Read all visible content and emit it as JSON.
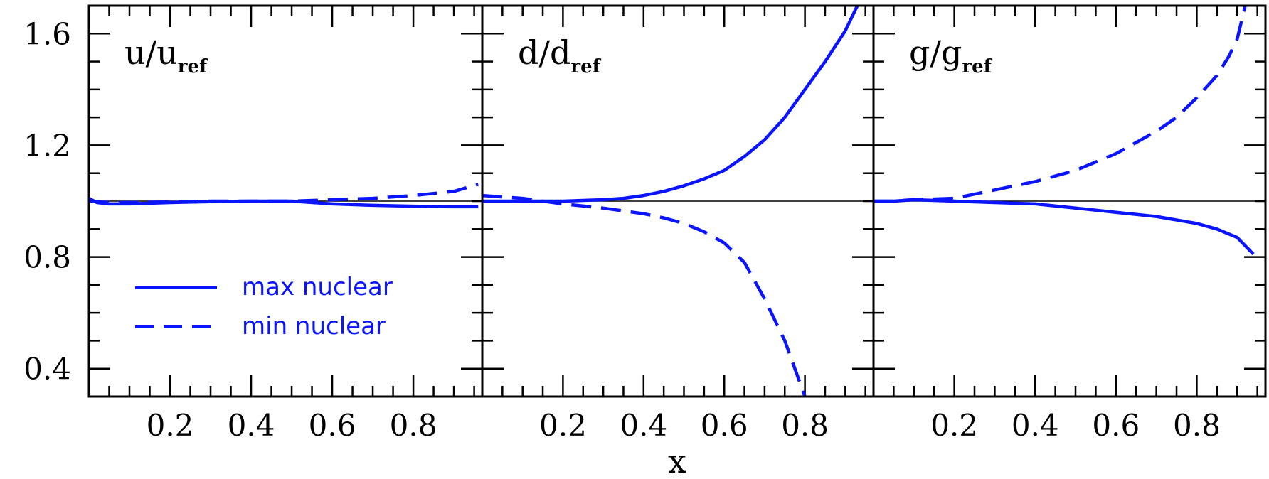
{
  "chart_data": {
    "type": "line",
    "xlabel": "x",
    "xlim": [
      0.0,
      0.97
    ],
    "ylim": [
      0.3,
      1.7
    ],
    "x_ticks": [
      "0.2",
      "0.4",
      "0.6",
      "0.8"
    ],
    "x_tick_values": [
      0.2,
      0.4,
      0.6,
      0.8
    ],
    "y_ticks": [
      "0.4",
      "0.8",
      "1.2",
      "1.6"
    ],
    "y_tick_values": [
      0.4,
      0.8,
      1.2,
      1.6
    ],
    "reference_line": 1.0,
    "colors": {
      "series": "#0a14ff",
      "axes": "#000000",
      "reference": "#000000"
    },
    "legend": {
      "placement": "lower-left of first panel",
      "entries": [
        {
          "label": "max nuclear",
          "style": "solid"
        },
        {
          "label": "min nuclear",
          "style": "dashed"
        }
      ]
    },
    "panels": [
      {
        "label_main": "u/u",
        "label_sub": "ref",
        "series": [
          {
            "name": "max nuclear",
            "style": "solid",
            "x": [
              0.0,
              0.02,
              0.05,
              0.1,
              0.2,
              0.3,
              0.4,
              0.5,
              0.6,
              0.7,
              0.8,
              0.9,
              0.96
            ],
            "y": [
              1.01,
              0.995,
              0.99,
              0.99,
              0.995,
              0.998,
              1.0,
              1.0,
              0.99,
              0.985,
              0.982,
              0.98,
              0.98
            ]
          },
          {
            "name": "min nuclear",
            "style": "dashed",
            "x": [
              0.0,
              0.05,
              0.1,
              0.2,
              0.3,
              0.4,
              0.5,
              0.6,
              0.7,
              0.8,
              0.9,
              0.96
            ],
            "y": [
              1.0,
              0.995,
              0.995,
              0.997,
              1.0,
              1.0,
              1.0,
              1.005,
              1.01,
              1.02,
              1.035,
              1.06
            ]
          }
        ]
      },
      {
        "label_main": "d/d",
        "label_sub": "ref",
        "series": [
          {
            "name": "max nuclear",
            "style": "solid",
            "x": [
              0.0,
              0.1,
              0.2,
              0.3,
              0.35,
              0.4,
              0.45,
              0.5,
              0.55,
              0.6,
              0.65,
              0.7,
              0.75,
              0.8,
              0.85,
              0.9,
              0.93
            ],
            "y": [
              1.0,
              1.0,
              1.0,
              1.005,
              1.01,
              1.02,
              1.035,
              1.055,
              1.08,
              1.11,
              1.16,
              1.22,
              1.3,
              1.4,
              1.5,
              1.61,
              1.7
            ]
          },
          {
            "name": "min nuclear",
            "style": "dashed",
            "x": [
              0.0,
              0.1,
              0.2,
              0.3,
              0.35,
              0.4,
              0.45,
              0.5,
              0.55,
              0.6,
              0.65,
              0.7,
              0.75,
              0.8
            ],
            "y": [
              1.02,
              1.01,
              0.99,
              0.975,
              0.965,
              0.955,
              0.94,
              0.92,
              0.89,
              0.85,
              0.78,
              0.65,
              0.5,
              0.3
            ]
          }
        ]
      },
      {
        "label_main": "g/g",
        "label_sub": "ref",
        "series": [
          {
            "name": "max nuclear",
            "style": "solid",
            "x": [
              0.0,
              0.05,
              0.1,
              0.2,
              0.3,
              0.4,
              0.5,
              0.6,
              0.7,
              0.8,
              0.85,
              0.9,
              0.94
            ],
            "y": [
              1.0,
              1.0,
              1.005,
              1.0,
              0.995,
              0.99,
              0.975,
              0.96,
              0.945,
              0.92,
              0.9,
              0.87,
              0.81
            ]
          },
          {
            "name": "min nuclear",
            "style": "dashed",
            "x": [
              0.0,
              0.05,
              0.1,
              0.2,
              0.3,
              0.4,
              0.5,
              0.6,
              0.7,
              0.75,
              0.8,
              0.85,
              0.88,
              0.9,
              0.92
            ],
            "y": [
              1.0,
              1.0,
              1.005,
              1.01,
              1.04,
              1.07,
              1.11,
              1.17,
              1.25,
              1.3,
              1.37,
              1.45,
              1.52,
              1.58,
              1.7
            ]
          }
        ]
      }
    ]
  }
}
